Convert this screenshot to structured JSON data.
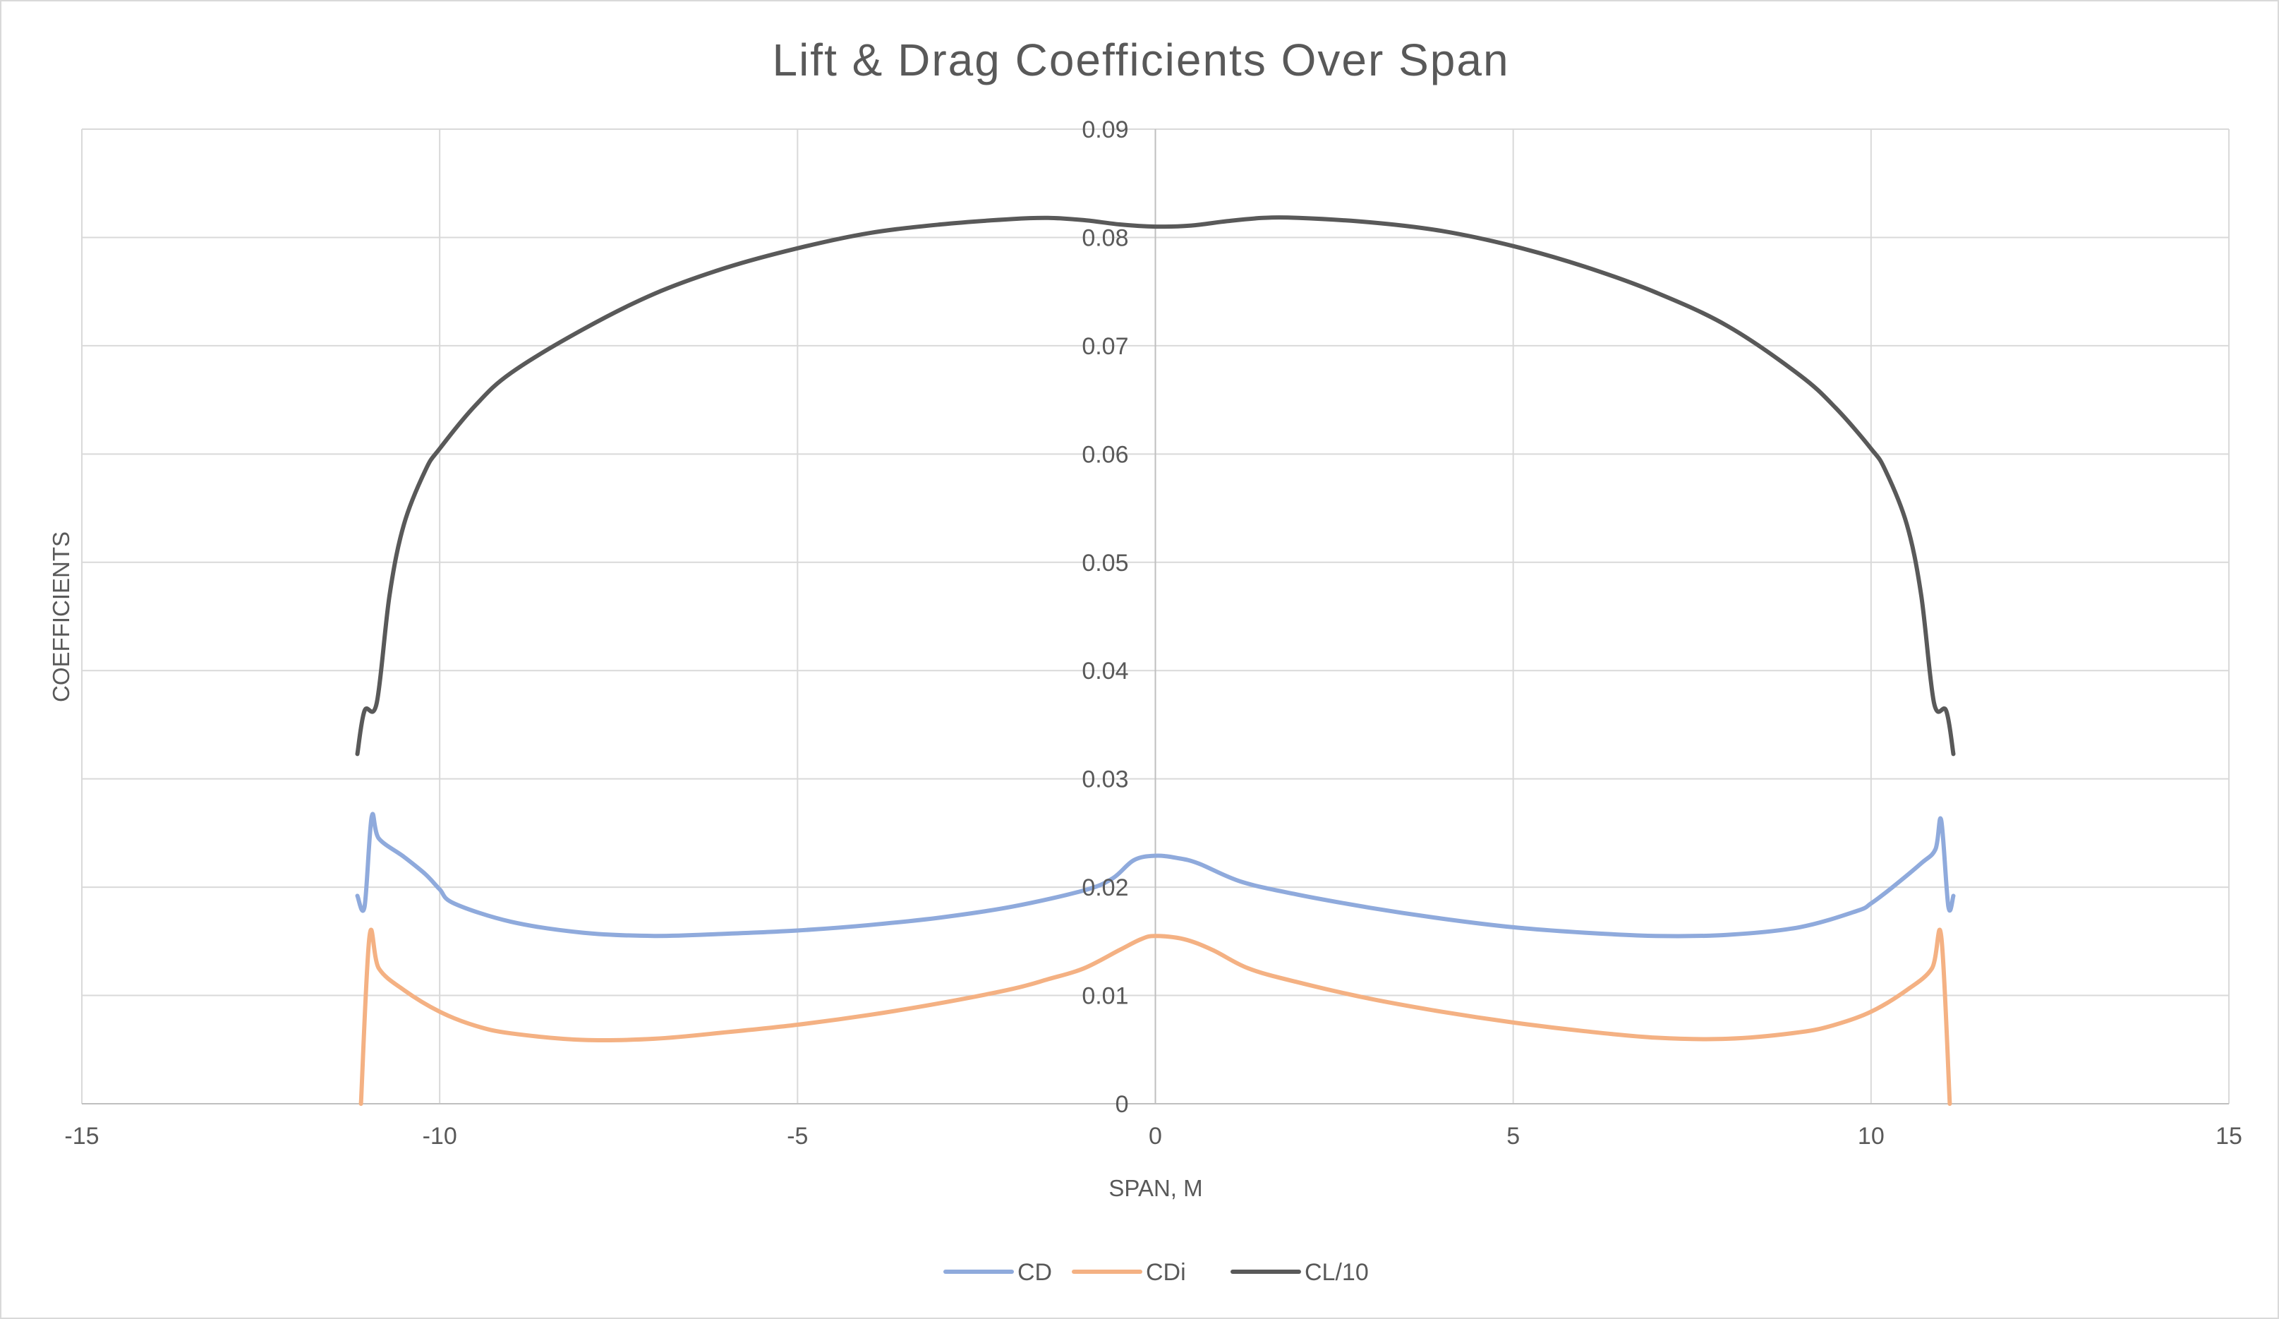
{
  "chart_data": {
    "type": "line",
    "title": "Lift & Drag Coefficients Over Span",
    "xlabel": "SPAN, M",
    "ylabel": "COEFFICIENTS",
    "xlim": [
      -15,
      15
    ],
    "ylim": [
      0,
      0.09
    ],
    "x_ticks": [
      "-15",
      "-10",
      "-5",
      "0",
      "5",
      "10",
      "15"
    ],
    "y_ticks": [
      "0",
      "0.01",
      "0.02",
      "0.03",
      "0.04",
      "0.05",
      "0.06",
      "0.07",
      "0.08",
      "0.09"
    ],
    "grid": true,
    "legend_position": "bottom",
    "series": [
      {
        "name": "CD",
        "color": "#8faadc",
        "points": [
          [
            -11.15,
            0.0192
          ],
          [
            -11.05,
            0.0182
          ],
          [
            -10.95,
            0.0265
          ],
          [
            -10.85,
            0.0245
          ],
          [
            -10.5,
            0.0228
          ],
          [
            -10.2,
            0.0212
          ],
          [
            -10.0,
            0.0198
          ],
          [
            -9.8,
            0.0185
          ],
          [
            -9.0,
            0.0168
          ],
          [
            -8.0,
            0.0158
          ],
          [
            -7.0,
            0.0155
          ],
          [
            -6.0,
            0.0157
          ],
          [
            -5.0,
            0.016
          ],
          [
            -4.0,
            0.0165
          ],
          [
            -3.0,
            0.0172
          ],
          [
            -2.0,
            0.0182
          ],
          [
            -1.0,
            0.0197
          ],
          [
            -0.6,
            0.0208
          ],
          [
            -0.3,
            0.0225
          ],
          [
            0.0,
            0.0229
          ],
          [
            0.3,
            0.0227
          ],
          [
            0.6,
            0.0222
          ],
          [
            1.2,
            0.0205
          ],
          [
            2.0,
            0.0193
          ],
          [
            3.0,
            0.0181
          ],
          [
            4.0,
            0.0171
          ],
          [
            5.0,
            0.0163
          ],
          [
            6.0,
            0.0158
          ],
          [
            7.0,
            0.0155
          ],
          [
            8.0,
            0.0156
          ],
          [
            9.0,
            0.0163
          ],
          [
            9.8,
            0.0178
          ],
          [
            10.0,
            0.0185
          ],
          [
            10.3,
            0.02
          ],
          [
            10.7,
            0.0222
          ],
          [
            10.9,
            0.0235
          ],
          [
            10.98,
            0.0262
          ],
          [
            11.08,
            0.0182
          ],
          [
            11.15,
            0.0192
          ]
        ]
      },
      {
        "name": "CDi",
        "color": "#f4b183",
        "points": [
          [
            -11.1,
            0.0
          ],
          [
            -10.98,
            0.0155
          ],
          [
            -10.85,
            0.0125
          ],
          [
            -10.5,
            0.0105
          ],
          [
            -10.0,
            0.0085
          ],
          [
            -9.5,
            0.0072
          ],
          [
            -9.0,
            0.0065
          ],
          [
            -8.0,
            0.0059
          ],
          [
            -7.0,
            0.006
          ],
          [
            -6.0,
            0.0066
          ],
          [
            -5.0,
            0.0073
          ],
          [
            -4.0,
            0.0082
          ],
          [
            -3.0,
            0.0093
          ],
          [
            -2.0,
            0.0106
          ],
          [
            -1.5,
            0.0115
          ],
          [
            -1.0,
            0.0125
          ],
          [
            -0.5,
            0.0142
          ],
          [
            -0.2,
            0.0152
          ],
          [
            0.0,
            0.0155
          ],
          [
            0.4,
            0.0152
          ],
          [
            0.8,
            0.0142
          ],
          [
            1.3,
            0.0125
          ],
          [
            2.0,
            0.0112
          ],
          [
            3.0,
            0.0097
          ],
          [
            4.0,
            0.0085
          ],
          [
            5.0,
            0.0075
          ],
          [
            6.0,
            0.0067
          ],
          [
            7.0,
            0.0061
          ],
          [
            8.0,
            0.006
          ],
          [
            9.0,
            0.0066
          ],
          [
            9.5,
            0.0073
          ],
          [
            10.0,
            0.0085
          ],
          [
            10.5,
            0.0105
          ],
          [
            10.85,
            0.0125
          ],
          [
            10.98,
            0.0155
          ],
          [
            11.1,
            0.0
          ]
        ]
      },
      {
        "name": "CL/10",
        "color": "#595959",
        "points": [
          [
            -11.15,
            0.0323
          ],
          [
            -11.05,
            0.0363
          ],
          [
            -10.88,
            0.037
          ],
          [
            -10.7,
            0.047
          ],
          [
            -10.5,
            0.0535
          ],
          [
            -10.2,
            0.0585
          ],
          [
            -10.0,
            0.0605
          ],
          [
            -9.5,
            0.0645
          ],
          [
            -9.0,
            0.0675
          ],
          [
            -8.0,
            0.0715
          ],
          [
            -7.0,
            0.0748
          ],
          [
            -6.0,
            0.0772
          ],
          [
            -5.0,
            0.079
          ],
          [
            -4.0,
            0.0804
          ],
          [
            -3.0,
            0.0812
          ],
          [
            -2.0,
            0.0817
          ],
          [
            -1.5,
            0.0818
          ],
          [
            -1.0,
            0.0816
          ],
          [
            -0.5,
            0.0812
          ],
          [
            0.0,
            0.081
          ],
          [
            0.5,
            0.0811
          ],
          [
            1.0,
            0.0815
          ],
          [
            1.5,
            0.0818
          ],
          [
            2.0,
            0.0818
          ],
          [
            3.0,
            0.0814
          ],
          [
            4.0,
            0.0806
          ],
          [
            5.0,
            0.0792
          ],
          [
            6.0,
            0.0773
          ],
          [
            7.0,
            0.0749
          ],
          [
            8.0,
            0.0718
          ],
          [
            9.0,
            0.0673
          ],
          [
            9.5,
            0.0643
          ],
          [
            10.0,
            0.0605
          ],
          [
            10.2,
            0.0585
          ],
          [
            10.5,
            0.0535
          ],
          [
            10.7,
            0.047
          ],
          [
            10.88,
            0.037
          ],
          [
            11.05,
            0.0363
          ],
          [
            11.15,
            0.0323
          ]
        ]
      }
    ]
  }
}
